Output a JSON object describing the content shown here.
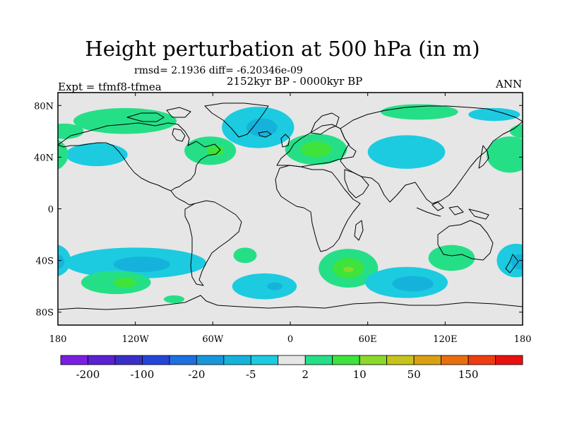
{
  "chart_data": {
    "type": "heatmap",
    "title": "Height perturbation at 500 hPa (in m)",
    "stats_line": "rmsd= 2.1936 diff= -6.20346e-09",
    "period_line": "2152kyr BP - 0000kyr BP",
    "experiment_line": "Expt = tfmf8-tfmea",
    "season": "ANN",
    "xlabel": "",
    "ylabel": "",
    "xlim": [
      -180,
      180
    ],
    "ylim": [
      -90,
      90
    ],
    "x_ticks": [
      {
        "value": -180,
        "label": "180"
      },
      {
        "value": -120,
        "label": "120W"
      },
      {
        "value": -60,
        "label": "60W"
      },
      {
        "value": 0,
        "label": "0"
      },
      {
        "value": 60,
        "label": "60E"
      },
      {
        "value": 120,
        "label": "120E"
      },
      {
        "value": 180,
        "label": "180"
      }
    ],
    "y_ticks": [
      {
        "value": 80,
        "label": "80N"
      },
      {
        "value": 40,
        "label": "40N"
      },
      {
        "value": 0,
        "label": "0"
      },
      {
        "value": -40,
        "label": "40S"
      },
      {
        "value": -80,
        "label": "80S"
      }
    ],
    "colorbar": {
      "levels": [
        -200,
        -150,
        -100,
        -50,
        -20,
        -10,
        -5,
        -2,
        2,
        5,
        10,
        20,
        50,
        100,
        150,
        200
      ],
      "labels": [
        {
          "after_box": 1,
          "text": "-200"
        },
        {
          "after_box": 3,
          "text": "-100"
        },
        {
          "after_box": 5,
          "text": "-20"
        },
        {
          "after_box": 7,
          "text": "-5"
        },
        {
          "after_box": 9,
          "text": "2"
        },
        {
          "after_box": 11,
          "text": "10"
        },
        {
          "after_box": 13,
          "text": "50"
        },
        {
          "after_box": 15,
          "text": "150"
        }
      ],
      "colors": [
        "#7a1fe0",
        "#5a21d2",
        "#3a2ec8",
        "#2446d8",
        "#1e6fe0",
        "#1996d9",
        "#15b3db",
        "#1ccbe0",
        "#e6e6e6",
        "#25df87",
        "#3ee33c",
        "#8ad92a",
        "#c6c41c",
        "#d9a112",
        "#e86f10",
        "#ee3d10",
        "#e81010"
      ]
    },
    "anomaly_regions": [
      {
        "name": "north-canada-positive",
        "lon": -128,
        "lat": 68,
        "rx_deg": 40,
        "ry_deg": 10,
        "level": "2 to 5"
      },
      {
        "name": "north-pacific-west-positive",
        "lon": -175,
        "lat": 60,
        "rx_deg": 15,
        "ry_deg": 6,
        "level": "2 to 5"
      },
      {
        "name": "eastern-north-america-positive",
        "lon": -62,
        "lat": 45,
        "rx_deg": 20,
        "ry_deg": 11,
        "level": "2 to 5"
      },
      {
        "name": "eastern-north-america-core",
        "lon": -58,
        "lat": 45,
        "rx_deg": 7,
        "ry_deg": 4,
        "level": "5 to 10"
      },
      {
        "name": "north-pacific-east-negative",
        "lon": -150,
        "lat": 42,
        "rx_deg": 24,
        "ry_deg": 9,
        "level": "-2 to -5"
      },
      {
        "name": "greenland-negative",
        "lon": -25,
        "lat": 63,
        "rx_deg": 28,
        "ry_deg": 16,
        "level": "-2 to -5"
      },
      {
        "name": "greenland-core",
        "lon": -22,
        "lat": 63,
        "rx_deg": 12,
        "ry_deg": 7,
        "level": "-5 to -10"
      },
      {
        "name": "europe-positive",
        "lon": 20,
        "lat": 46,
        "rx_deg": 24,
        "ry_deg": 12,
        "level": "2 to 5"
      },
      {
        "name": "europe-core",
        "lon": 20,
        "lat": 46,
        "rx_deg": 12,
        "ry_deg": 6,
        "level": "5 to 10"
      },
      {
        "name": "arctic-siberia-positive",
        "lon": 100,
        "lat": 75,
        "rx_deg": 30,
        "ry_deg": 6,
        "level": "2 to 5"
      },
      {
        "name": "central-asia-negative",
        "lon": 90,
        "lat": 44,
        "rx_deg": 30,
        "ry_deg": 13,
        "level": "-2 to -5"
      },
      {
        "name": "bering-negative",
        "lon": 158,
        "lat": 73,
        "rx_deg": 20,
        "ry_deg": 5,
        "level": "-2 to -5"
      },
      {
        "name": "north-pacific-positive",
        "lon": 170,
        "lat": 42,
        "rx_deg": 18,
        "ry_deg": 14,
        "level": "2 to 5"
      },
      {
        "name": "south-pacific-negative",
        "lon": -120,
        "lat": -42,
        "rx_deg": 55,
        "ry_deg": 12,
        "level": "-2 to -5"
      },
      {
        "name": "south-pacific-core",
        "lon": -115,
        "lat": -43,
        "rx_deg": 22,
        "ry_deg": 6,
        "level": "-5 to -10"
      },
      {
        "name": "southern-ocean-pacific-positive",
        "lon": -135,
        "lat": -57,
        "rx_deg": 27,
        "ry_deg": 9,
        "level": "2 to 5"
      },
      {
        "name": "southern-ocean-pacific-core",
        "lon": -128,
        "lat": -57,
        "rx_deg": 9,
        "ry_deg": 4,
        "level": "5 to 10"
      },
      {
        "name": "south-atlantic-positive",
        "lon": -35,
        "lat": -36,
        "rx_deg": 9,
        "ry_deg": 6,
        "level": "2 to 5"
      },
      {
        "name": "southern-ocean-atlantic-negative",
        "lon": -20,
        "lat": -60,
        "rx_deg": 25,
        "ry_deg": 10,
        "level": "-2 to -5"
      },
      {
        "name": "southern-ocean-atlantic-core",
        "lon": -12,
        "lat": -60,
        "rx_deg": 6,
        "ry_deg": 3,
        "level": "-5 to -10"
      },
      {
        "name": "antarctic-coast-positive",
        "lon": -90,
        "lat": -70,
        "rx_deg": 8,
        "ry_deg": 3,
        "level": "2 to 5"
      },
      {
        "name": "south-indian-positive",
        "lon": 45,
        "lat": -46,
        "rx_deg": 23,
        "ry_deg": 15,
        "level": "2 to 5"
      },
      {
        "name": "south-indian-core",
        "lon": 45,
        "lat": -46,
        "rx_deg": 12,
        "ry_deg": 8,
        "level": "5 to 10"
      },
      {
        "name": "south-indian-peak",
        "lon": 45,
        "lat": -47,
        "rx_deg": 4,
        "ry_deg": 2,
        "level": "10 to 20"
      },
      {
        "name": "southern-ocean-indian-negative",
        "lon": 90,
        "lat": -57,
        "rx_deg": 32,
        "ry_deg": 12,
        "level": "-2 to -5"
      },
      {
        "name": "southern-ocean-indian-core",
        "lon": 95,
        "lat": -58,
        "rx_deg": 16,
        "ry_deg": 6,
        "level": "-5 to -10"
      },
      {
        "name": "australia-south-positive",
        "lon": 125,
        "lat": -38,
        "rx_deg": 18,
        "ry_deg": 10,
        "level": "2 to 5"
      },
      {
        "name": "new-zealand-negative",
        "lon": 175,
        "lat": -40,
        "rx_deg": 15,
        "ry_deg": 13,
        "level": "-2 to -5"
      },
      {
        "name": "new-zealand-core",
        "lon": 178,
        "lat": -41,
        "rx_deg": 7,
        "ry_deg": 6,
        "level": "-5 to -10"
      }
    ]
  }
}
